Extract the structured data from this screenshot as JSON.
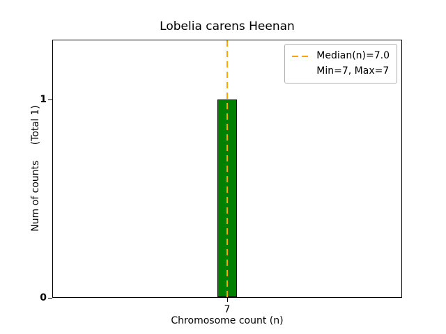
{
  "chart_data": {
    "type": "bar",
    "title": "Lobelia carens Heenan",
    "xlabel": "Chromosome count (n)",
    "ylabel": "Num of counts     (Total 1)",
    "categories": [
      7
    ],
    "values": [
      1
    ],
    "bar_width_data": 0.8,
    "xlim": [
      0,
      14
    ],
    "ylim": [
      0,
      1.3
    ],
    "xticks": [
      7
    ],
    "yticks": [
      0,
      1
    ],
    "grid": false,
    "bar_color": "#008000",
    "bar_edge_color": "#000000",
    "median_line": {
      "x": 7,
      "color": "#FFA500",
      "style": "dashed"
    },
    "legend": {
      "position": "top-right",
      "entries": [
        {
          "label": "Median(n)=7.0",
          "swatch": "dashed-orange-line"
        },
        {
          "label": "Min=7, Max=7",
          "swatch": "none"
        }
      ]
    }
  }
}
